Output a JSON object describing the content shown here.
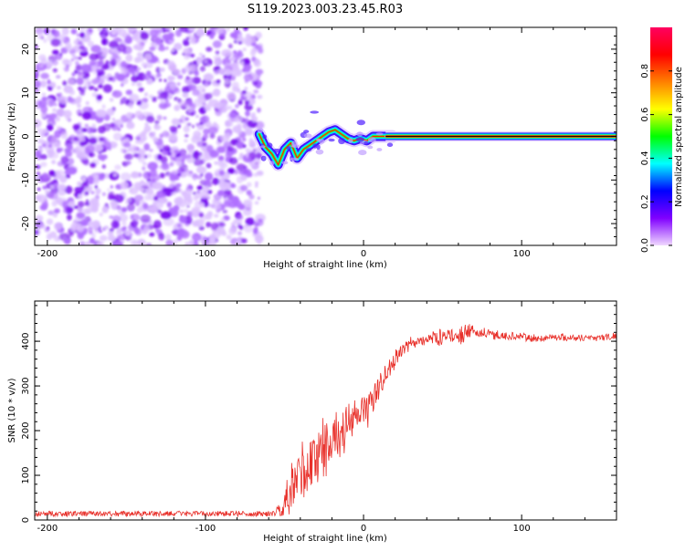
{
  "title": "S119.2023.003.23.45.R03",
  "colors": {
    "snr_line": "#e8302a",
    "spectrogram_cmap": [
      "#ff00c0",
      "#8000ff",
      "#0000ff",
      "#00ffff",
      "#00ff00",
      "#ffff00",
      "#ff8000",
      "#ff0000",
      "#ff0050"
    ],
    "noise_speckle": "#9040ff",
    "centerline": "#000000"
  },
  "chart_data": [
    {
      "type": "heatmap",
      "name": "spectrogram",
      "xlabel": "Height of straight line (km)",
      "ylabel": "Frequency (Hz)",
      "xlim": [
        -208,
        160
      ],
      "ylim": [
        -25,
        25
      ],
      "x_ticks": [
        -200,
        -100,
        0,
        100
      ],
      "y_ticks": [
        -20,
        -10,
        0,
        10,
        20
      ],
      "colorbar": {
        "label": "Normalized spectral amplitude",
        "range": [
          0,
          1
        ],
        "ticks": [
          "0.0",
          "0.2",
          "0.4",
          "0.6",
          "0.8"
        ]
      },
      "noise_region_x": [
        -208,
        -65
      ],
      "ridge": {
        "x": [
          -66,
          -62,
          -58,
          -54,
          -50,
          -46,
          -42,
          -38,
          -34,
          -30,
          -26,
          -22,
          -18,
          -14,
          -10,
          -6,
          -2,
          2,
          6,
          10,
          14,
          18
        ],
        "freq_hz": [
          0.5,
          -2.5,
          -4.0,
          -6.5,
          -3.0,
          -1.5,
          -5.0,
          -3.0,
          -2.0,
          -1.0,
          0.0,
          1.0,
          1.5,
          0.5,
          -0.5,
          -1.0,
          -0.5,
          -1.0,
          0.0,
          0.0,
          0.0,
          0.0
        ]
      },
      "steady_line": {
        "x_range": [
          14,
          160
        ],
        "freq_hz": 0.0
      }
    },
    {
      "type": "line",
      "name": "snr",
      "xlabel": "Height of straight line (km)",
      "ylabel": "SNR (10 * v/v)",
      "xlim": [
        -208,
        160
      ],
      "ylim": [
        0,
        490
      ],
      "x_ticks": [
        -200,
        -100,
        0,
        100
      ],
      "y_ticks": [
        0,
        100,
        200,
        300,
        400
      ],
      "envelope_x": [
        -208,
        -60,
        -52,
        -48,
        -44,
        -40,
        -36,
        -32,
        -28,
        -24,
        -20,
        -16,
        -12,
        -8,
        -4,
        0,
        4,
        8,
        12,
        16,
        20,
        25,
        30,
        40,
        50,
        60,
        70,
        80,
        90,
        100,
        110,
        120,
        130,
        140,
        160
      ],
      "envelope_mean": [
        10,
        12,
        20,
        40,
        70,
        100,
        110,
        130,
        150,
        170,
        180,
        190,
        200,
        215,
        230,
        240,
        260,
        285,
        310,
        340,
        360,
        380,
        395,
        405,
        410,
        415,
        420,
        415,
        412,
        410,
        405,
        410,
        408,
        408,
        410
      ],
      "envelope_noise": [
        8,
        8,
        25,
        60,
        90,
        110,
        110,
        100,
        90,
        80,
        70,
        70,
        60,
        55,
        55,
        55,
        50,
        45,
        40,
        30,
        25,
        20,
        18,
        18,
        22,
        25,
        20,
        15,
        12,
        12,
        12,
        10,
        10,
        10,
        10
      ]
    }
  ]
}
